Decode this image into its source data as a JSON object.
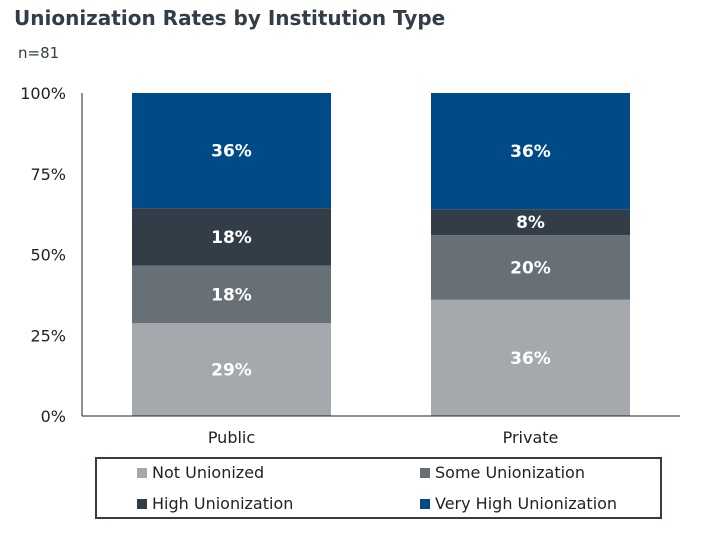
{
  "chart_data": {
    "type": "stacked-bar",
    "title": "Unionization Rates by Institution Type",
    "subtitle": "n=81",
    "categories": [
      "Public",
      "Private"
    ],
    "y_ticks": [
      "0%",
      "25%",
      "50%",
      "75%",
      "100%"
    ],
    "ylim": [
      0,
      100
    ],
    "legend_position": "bottom",
    "grid": false,
    "series": [
      {
        "name": "Not Unionized",
        "color": "#a5a8ac",
        "values": [
          29,
          36
        ],
        "labels": [
          "29%",
          "36%"
        ]
      },
      {
        "name": "Some Unionization",
        "color": "#676f77",
        "values": [
          18,
          20
        ],
        "labels": [
          "18%",
          "20%"
        ]
      },
      {
        "name": "High Unionization",
        "color": "#333d47",
        "values": [
          18,
          8
        ],
        "labels": [
          "18%",
          "8%"
        ]
      },
      {
        "name": "Very High Unionization",
        "color": "#004a87",
        "values": [
          36,
          36
        ],
        "labels": [
          "36%",
          "36%"
        ]
      }
    ]
  }
}
